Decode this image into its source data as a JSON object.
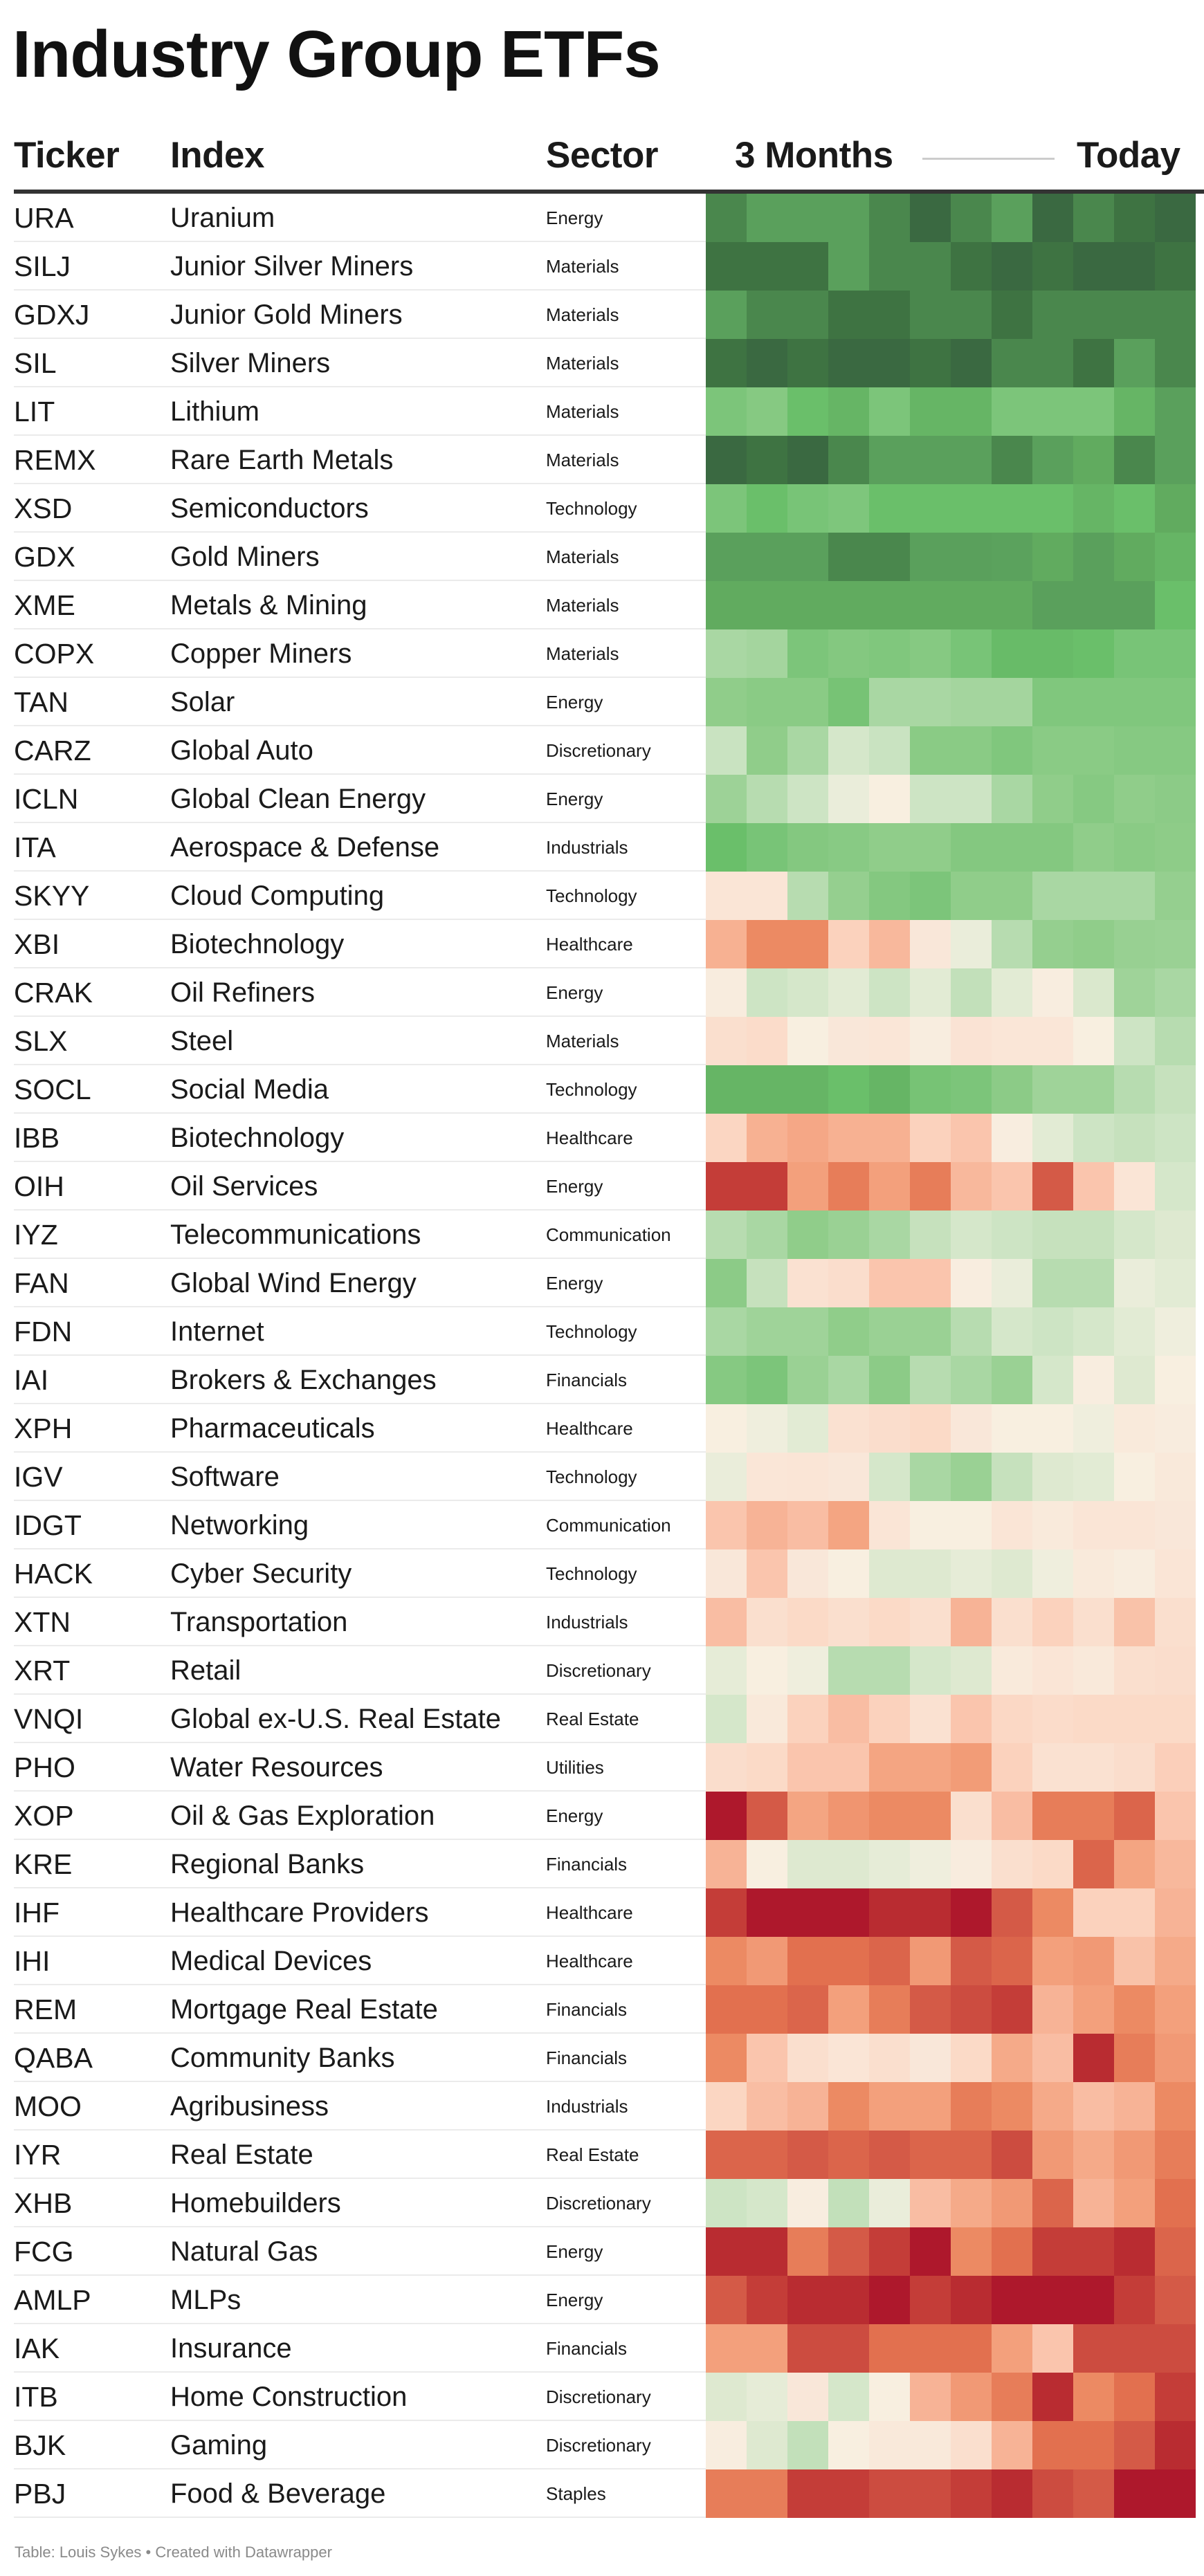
{
  "title": "Industry Group ETFs",
  "headers": {
    "ticker": "Ticker",
    "index": "Index",
    "sector": "Sector",
    "start": "3 Months",
    "end": "Today"
  },
  "footer": "Table: Louis Sykes • Created with Datawrapper",
  "rows": [
    {
      "ticker": "URA",
      "index": "Uranium",
      "sector": "Energy"
    },
    {
      "ticker": "SILJ",
      "index": "Junior Silver Miners",
      "sector": "Materials"
    },
    {
      "ticker": "GDXJ",
      "index": "Junior Gold Miners",
      "sector": "Materials"
    },
    {
      "ticker": "SIL",
      "index": "Silver Miners",
      "sector": "Materials"
    },
    {
      "ticker": "LIT",
      "index": "Lithium",
      "sector": "Materials"
    },
    {
      "ticker": "REMX",
      "index": "Rare Earth Metals",
      "sector": "Materials"
    },
    {
      "ticker": "XSD",
      "index": "Semiconductors",
      "sector": "Technology"
    },
    {
      "ticker": "GDX",
      "index": "Gold Miners",
      "sector": "Materials"
    },
    {
      "ticker": "XME",
      "index": "Metals & Mining",
      "sector": "Materials"
    },
    {
      "ticker": "COPX",
      "index": "Copper Miners",
      "sector": "Materials"
    },
    {
      "ticker": "TAN",
      "index": "Solar",
      "sector": "Energy"
    },
    {
      "ticker": "CARZ",
      "index": "Global Auto",
      "sector": "Discretionary"
    },
    {
      "ticker": "ICLN",
      "index": "Global Clean Energy",
      "sector": "Energy"
    },
    {
      "ticker": "ITA",
      "index": "Aerospace & Defense",
      "sector": "Industrials"
    },
    {
      "ticker": "SKYY",
      "index": "Cloud Computing",
      "sector": "Technology"
    },
    {
      "ticker": "XBI",
      "index": "Biotechnology",
      "sector": "Healthcare"
    },
    {
      "ticker": "CRAK",
      "index": "Oil Refiners",
      "sector": "Energy"
    },
    {
      "ticker": "SLX",
      "index": "Steel",
      "sector": "Materials"
    },
    {
      "ticker": "SOCL",
      "index": "Social Media",
      "sector": "Technology"
    },
    {
      "ticker": "IBB",
      "index": "Biotechnology",
      "sector": "Healthcare"
    },
    {
      "ticker": "OIH",
      "index": "Oil Services",
      "sector": "Energy"
    },
    {
      "ticker": "IYZ",
      "index": "Telecommunications",
      "sector": "Communication"
    },
    {
      "ticker": "FAN",
      "index": "Global Wind Energy",
      "sector": "Energy"
    },
    {
      "ticker": "FDN",
      "index": "Internet",
      "sector": "Technology"
    },
    {
      "ticker": "IAI",
      "index": "Brokers & Exchanges",
      "sector": "Financials"
    },
    {
      "ticker": "XPH",
      "index": "Pharmaceuticals",
      "sector": "Healthcare"
    },
    {
      "ticker": "IGV",
      "index": "Software",
      "sector": "Technology"
    },
    {
      "ticker": "IDGT",
      "index": "Networking",
      "sector": "Communication"
    },
    {
      "ticker": "HACK",
      "index": "Cyber Security",
      "sector": "Technology"
    },
    {
      "ticker": "XTN",
      "index": "Transportation",
      "sector": "Industrials"
    },
    {
      "ticker": "XRT",
      "index": "Retail",
      "sector": "Discretionary"
    },
    {
      "ticker": "VNQI",
      "index": "Global ex-U.S. Real Estate",
      "sector": "Real Estate"
    },
    {
      "ticker": "PHO",
      "index": "Water Resources",
      "sector": "Utilities"
    },
    {
      "ticker": "XOP",
      "index": "Oil & Gas Exploration",
      "sector": "Energy"
    },
    {
      "ticker": "KRE",
      "index": "Regional Banks",
      "sector": "Financials"
    },
    {
      "ticker": "IHF",
      "index": "Healthcare Providers",
      "sector": "Healthcare"
    },
    {
      "ticker": "IHI",
      "index": "Medical Devices",
      "sector": "Healthcare"
    },
    {
      "ticker": "REM",
      "index": "Mortgage Real Estate",
      "sector": "Financials"
    },
    {
      "ticker": "QABA",
      "index": "Community Banks",
      "sector": "Financials"
    },
    {
      "ticker": "MOO",
      "index": "Agribusiness",
      "sector": "Industrials"
    },
    {
      "ticker": "IYR",
      "index": "Real Estate",
      "sector": "Real Estate"
    },
    {
      "ticker": "XHB",
      "index": "Homebuilders",
      "sector": "Discretionary"
    },
    {
      "ticker": "FCG",
      "index": "Natural Gas",
      "sector": "Energy"
    },
    {
      "ticker": "AMLP",
      "index": "MLPs",
      "sector": "Energy"
    },
    {
      "ticker": "IAK",
      "index": "Insurance",
      "sector": "Financials"
    },
    {
      "ticker": "ITB",
      "index": "Home Construction",
      "sector": "Discretionary"
    },
    {
      "ticker": "BJK",
      "index": "Gaming",
      "sector": "Discretionary"
    },
    {
      "ticker": "PBJ",
      "index": "Food & Beverage",
      "sector": "Staples"
    }
  ],
  "chart_data": {
    "type": "heatmap",
    "x_range_labels": [
      "3 Months",
      "Today"
    ],
    "columns": 12,
    "value_scale": [
      -10,
      10
    ],
    "color_scale": [
      "#ae182c",
      "#b92c31",
      "#c43d38",
      "#d45a47",
      "#e2704f",
      "#ec8a63",
      "#f3a07c",
      "#f8b89c",
      "#fbd2bd",
      "#fae5d6",
      "#f7f1e3",
      "#cde4c4",
      "#a9d7a3",
      "#90cd8a",
      "#7cc57a",
      "#6abf6a",
      "#61ab5f",
      "#5aa05c",
      "#4a874d",
      "#3e7342",
      "#3a6941"
    ],
    "values": [
      [
        8,
        7,
        7,
        7,
        8,
        10,
        8,
        7,
        10,
        8,
        9,
        10
      ],
      [
        9,
        9,
        9,
        7,
        8,
        8,
        9,
        10,
        9,
        10,
        10,
        9
      ],
      [
        7,
        8,
        8,
        9,
        9,
        8,
        8,
        9,
        8,
        8,
        8,
        8
      ],
      [
        9,
        10,
        9,
        10,
        10,
        9,
        10,
        8,
        8,
        9,
        7,
        8
      ],
      [
        4,
        3.5,
        5,
        5.5,
        4,
        5.5,
        5.5,
        4,
        4,
        4,
        5.5,
        7
      ],
      [
        10,
        9,
        10,
        8,
        7,
        7,
        7,
        8,
        7,
        6,
        8,
        7
      ],
      [
        4,
        5,
        4.2,
        3.9,
        5,
        5,
        5,
        5,
        5,
        5.5,
        5,
        6
      ],
      [
        7,
        7,
        7,
        8,
        8,
        7,
        7,
        6.8,
        6,
        7,
        6,
        5.5
      ],
      [
        6,
        6,
        6,
        6,
        6,
        6,
        6,
        6,
        7,
        7,
        7,
        5
      ],
      [
        2,
        2.2,
        4,
        3.6,
        3.8,
        3.5,
        4.2,
        5.2,
        5.2,
        5,
        4.2,
        4.2
      ],
      [
        3,
        3.3,
        3.3,
        4.3,
        2,
        2,
        2.2,
        2.2,
        3.8,
        3.8,
        3.8,
        3.8
      ],
      [
        1.1,
        3,
        2,
        0.8,
        1.1,
        3.3,
        3.3,
        3.8,
        3.3,
        3.3,
        3.5,
        3.5
      ],
      [
        2.5,
        1.6,
        1,
        0.3,
        -0.2,
        1,
        1,
        2,
        3,
        3.5,
        3,
        3.2
      ],
      [
        5,
        4.2,
        3.6,
        3.4,
        3,
        3,
        3.6,
        3.6,
        3.6,
        3,
        3.3,
        3.1
      ],
      [
        -1,
        -1,
        1.6,
        2.8,
        3.6,
        4,
        3,
        3,
        2,
        2,
        2,
        2.8
      ],
      [
        -3.3,
        -5,
        -5,
        -2,
        -3,
        -0.8,
        0.3,
        1.6,
        2.8,
        3,
        2.7,
        2.6
      ],
      [
        -0.4,
        1,
        0.8,
        0.5,
        1,
        0.5,
        1.3,
        0.5,
        -0.3,
        0.7,
        2.4,
        2
      ],
      [
        -1.3,
        -1.5,
        -0.2,
        -0.8,
        -0.9,
        -0.3,
        -1.1,
        -0.9,
        -0.9,
        -0.2,
        1,
        1.6
      ],
      [
        5.5,
        5.5,
        5.5,
        5,
        5.5,
        4.3,
        4,
        3.2,
        2.4,
        2.4,
        1.6,
        1.2
      ],
      [
        -1.8,
        -3.3,
        -3.7,
        -3.3,
        -3.3,
        -2,
        -2.5,
        -0.3,
        0.5,
        1,
        1.2,
        1
      ],
      [
        -8,
        -8,
        -4,
        -5.5,
        -4,
        -5.5,
        -3,
        -2.5,
        -7,
        -2.5,
        -1,
        0.8
      ],
      [
        1.6,
        2,
        3,
        2.6,
        2,
        1.2,
        0.8,
        1,
        1.2,
        1.2,
        0.8,
        0.6
      ],
      [
        3.2,
        1.2,
        -1.2,
        -1.4,
        -2.5,
        -2.5,
        -0.3,
        0.3,
        1.6,
        1.6,
        0.3,
        0.5
      ],
      [
        2,
        2.4,
        2.4,
        3,
        2.6,
        2.6,
        1.6,
        0.8,
        1,
        0.8,
        0.5,
        0.2
      ],
      [
        3.5,
        4,
        2.6,
        2,
        3.2,
        1.6,
        2,
        2.6,
        0.8,
        -0.3,
        0.6,
        -0.2
      ],
      [
        -0.2,
        0.2,
        0.5,
        -1.2,
        -1.4,
        -1.6,
        -0.8,
        -0.2,
        -0.2,
        0.2,
        -0.6,
        -0.4
      ],
      [
        0.3,
        -0.9,
        -1,
        -0.8,
        0.8,
        2,
        2.6,
        1.2,
        0.6,
        0.5,
        -0.2,
        -0.7
      ],
      [
        -2.5,
        -3.2,
        -2.8,
        -3.8,
        -1,
        -0.2,
        -0.2,
        -1,
        -0.6,
        -1,
        -1,
        -0.8
      ],
      [
        -0.8,
        -2.5,
        -0.8,
        -0.2,
        0.6,
        0.6,
        0.4,
        0.6,
        0.2,
        -0.6,
        -0.3,
        -1
      ],
      [
        -2.8,
        -1.3,
        -1.6,
        -1.3,
        -1.6,
        -1.3,
        -3.2,
        -1.3,
        -2,
        -1.3,
        -2.6,
        -1.3
      ],
      [
        0.4,
        -0.2,
        0.2,
        1.6,
        1.6,
        0.8,
        0.6,
        -0.6,
        -1,
        -0.7,
        -1.3,
        -1.4
      ],
      [
        0.8,
        -0.7,
        -2,
        -2.8,
        -2,
        -1.2,
        -2.5,
        -1.7,
        -1.5,
        -1.6,
        -1.6,
        -1.6
      ],
      [
        -1.4,
        -1.6,
        -2.5,
        -2.5,
        -3.8,
        -3.8,
        -4.2,
        -2,
        -1.2,
        -1.2,
        -1.4,
        -2.1
      ],
      [
        -10,
        -7,
        -3.8,
        -4.5,
        -5,
        -5,
        -1.3,
        -2.8,
        -5.5,
        -5.5,
        -6.5,
        -2.5
      ],
      [
        -3.2,
        -0.2,
        0.6,
        0.6,
        0.4,
        0.2,
        -0.4,
        -1.3,
        -1.6,
        -6.5,
        -3.8,
        -3
      ],
      [
        -8,
        -10,
        -10,
        -10,
        -9,
        -9,
        -10,
        -7,
        -5,
        -2,
        -2,
        -3.2
      ],
      [
        -5,
        -4.3,
        -6,
        -6,
        -6.5,
        -4.3,
        -7,
        -6.5,
        -4,
        -4.3,
        -2.6,
        -3.6
      ],
      [
        -6,
        -6,
        -6.5,
        -4,
        -5.5,
        -7,
        -7.5,
        -8,
        -3.2,
        -4,
        -5,
        -4
      ],
      [
        -5,
        -2.5,
        -1.3,
        -1,
        -1.3,
        -0.8,
        -1.6,
        -3.6,
        -2.8,
        -9,
        -5.5,
        -4.3
      ],
      [
        -1.8,
        -2.8,
        -3.2,
        -5,
        -4,
        -4,
        -5.5,
        -5,
        -3.6,
        -2.8,
        -3.2,
        -5
      ],
      [
        -6.5,
        -6.5,
        -7,
        -6.5,
        -7,
        -6.5,
        -6.5,
        -7.5,
        -4.3,
        -3.6,
        -4.3,
        -5.5
      ],
      [
        1,
        0.8,
        -0.3,
        1.3,
        0.3,
        -2.8,
        -3.6,
        -4.3,
        -6.5,
        -3.2,
        -4,
        -6
      ],
      [
        -9,
        -9,
        -5.5,
        -7,
        -8,
        -10,
        -5,
        -6,
        -8,
        -8,
        -9,
        -6.5
      ],
      [
        -7,
        -8,
        -9,
        -9,
        -10,
        -8,
        -9,
        -10,
        -10,
        -10,
        -8,
        -7
      ],
      [
        -4,
        -4,
        -7.5,
        -7.5,
        -6,
        -6,
        -6,
        -4,
        -2.5,
        -7.5,
        -7.5,
        -7.5
      ],
      [
        0.6,
        0.4,
        -0.8,
        0.8,
        -0.2,
        -3.2,
        -4.3,
        -5.5,
        -9,
        -5,
        -6,
        -8
      ],
      [
        -0.3,
        0.6,
        1.3,
        -0.2,
        -0.7,
        -0.7,
        -1.3,
        -3.2,
        -6,
        -6,
        -7,
        -9
      ],
      [
        -5.5,
        -5.5,
        -8,
        -8,
        -7.5,
        -7.5,
        -8,
        -9,
        -7.5,
        -7,
        -10,
        -10
      ]
    ]
  }
}
